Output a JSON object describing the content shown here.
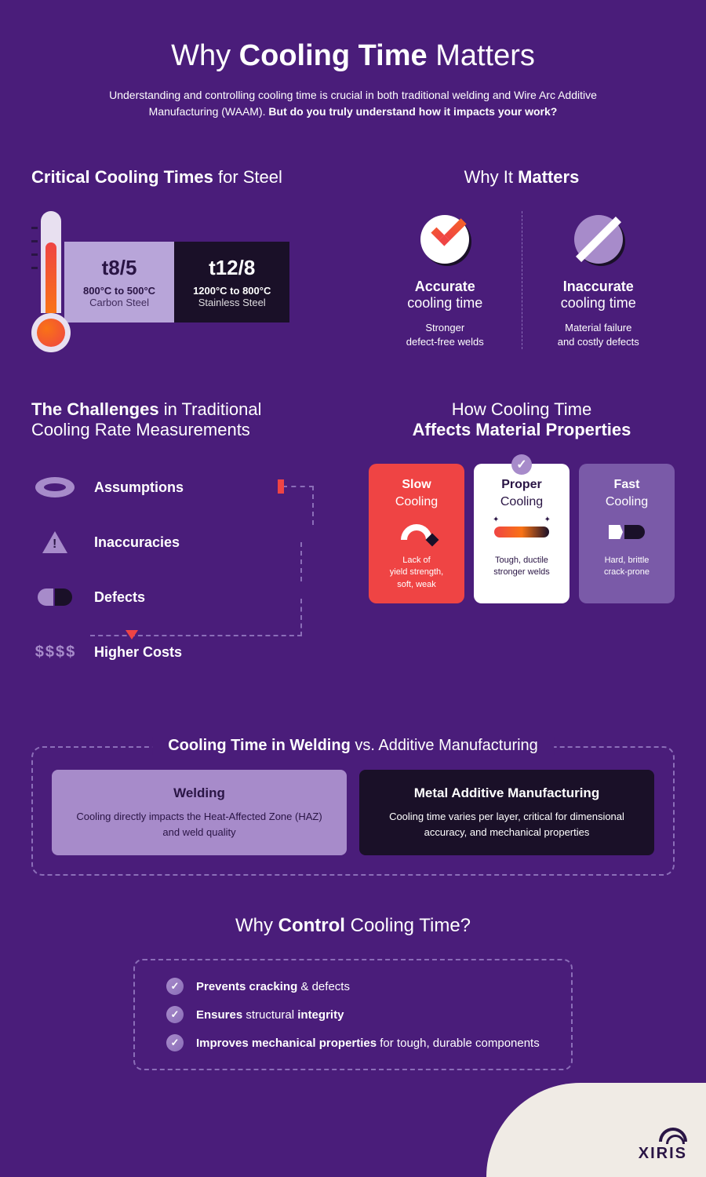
{
  "colors": {
    "bg": "#4a1d7a",
    "accent_light": "#a78bca",
    "accent_mid": "#b8a5d9",
    "dark": "#1a1028",
    "red": "#ef4444",
    "orange": "#f97316",
    "dash": "#8b6eb8",
    "cream": "#f0ebe5"
  },
  "header": {
    "title_pre": "Why ",
    "title_bold": "Cooling Time",
    "title_post": " Matters",
    "subtitle_plain": "Understanding and controlling cooling time is crucial in both traditional welding and Wire Arc Additive Manufacturing (WAAM). ",
    "subtitle_bold": "But do you truly understand how it impacts your work?"
  },
  "critical": {
    "title_bold": "Critical Cooling Times",
    "title_plain": " for Steel",
    "cards": [
      {
        "label": "t8/5",
        "range": "800°C to 500°C",
        "material": "Carbon Steel"
      },
      {
        "label": "t12/8",
        "range": "1200°C to 800°C",
        "material": "Stainless Steel"
      }
    ]
  },
  "matters": {
    "title_pre": "Why It ",
    "title_bold": "Matters",
    "accurate": {
      "heading": "Accurate",
      "sub": "cooling time",
      "desc1": "Stronger",
      "desc2": "defect-free welds"
    },
    "inaccurate": {
      "heading": "Inaccurate",
      "sub": "cooling time",
      "desc1": "Material failure",
      "desc2": "and costly defects"
    }
  },
  "challenges": {
    "title_bold": "The Challenges",
    "title_plain1": " in Traditional",
    "title_plain2": "Cooling Rate Measurements",
    "items": [
      {
        "label": "Assumptions"
      },
      {
        "label": "Inaccuracies"
      },
      {
        "label": "Defects"
      },
      {
        "label": "Higher Costs"
      }
    ]
  },
  "properties": {
    "title_pre": "How Cooling Time",
    "title_bold": "Affects Material Properties",
    "slow": {
      "title": "Slow",
      "sub": "Cooling",
      "desc": "Lack of\nyield strength,\nsoft, weak"
    },
    "proper": {
      "title": "Proper",
      "sub": "Cooling",
      "desc": "Tough, ductile\nstronger welds"
    },
    "fast": {
      "title": "Fast",
      "sub": "Cooling",
      "desc": "Hard, brittle\ncrack-prone"
    }
  },
  "compare": {
    "title_bold": "Cooling Time in Welding",
    "title_plain": " vs. Additive Manufacturing",
    "welding": {
      "heading": "Welding",
      "desc": "Cooling directly impacts the Heat-Affected Zone (HAZ) and weld quality"
    },
    "am": {
      "heading": "Metal Additive Manufacturing",
      "desc": "Cooling time varies per layer, critical for dimensional accuracy, and mechanical properties"
    }
  },
  "control": {
    "title_pre": "Why ",
    "title_bold": "Control",
    "title_post": " Cooling Time?",
    "items": [
      {
        "bold1": "Prevents cracking",
        "plain": " & defects",
        "bold2": ""
      },
      {
        "bold1": "Ensures",
        "plain": " structural ",
        "bold2": "integrity"
      },
      {
        "bold1": "Improves mechanical properties",
        "plain": " for tough, durable components",
        "bold2": ""
      }
    ]
  },
  "logo": {
    "text": "XIRIS"
  }
}
